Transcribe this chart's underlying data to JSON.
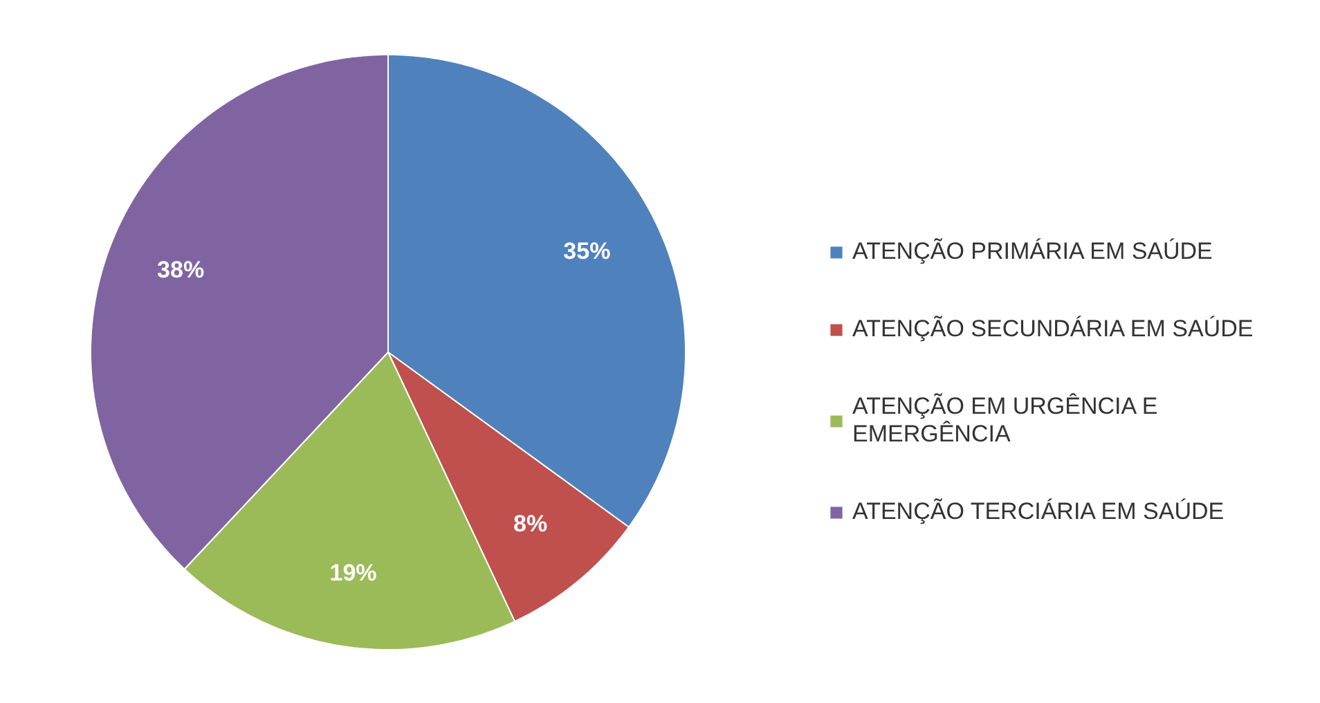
{
  "chart_data": {
    "type": "pie",
    "categories": [
      "ATENÇÃO PRIMÁRIA EM SAÚDE",
      "ATENÇÃO SECUNDÁRIA EM SAÚDE",
      "ATENÇÃO EM URGÊNCIA E EMERGÊNCIA",
      "ATENÇÃO TERCIÁRIA EM SAÚDE"
    ],
    "values": [
      35,
      8,
      19,
      38
    ],
    "colors": [
      "#4f81bd",
      "#c0504d",
      "#9bbb59",
      "#8064a2"
    ],
    "value_labels": [
      "35%",
      "8%",
      "19%",
      "38%"
    ],
    "legend": "right"
  }
}
